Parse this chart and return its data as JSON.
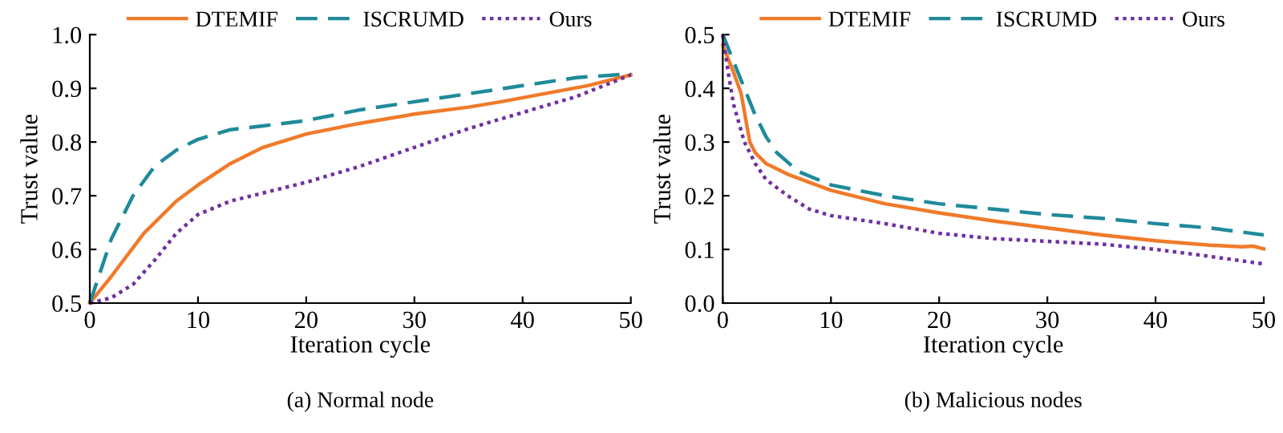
{
  "chart_data": [
    {
      "type": "line",
      "xlabel": "Iteration cycle",
      "ylabel": "Trust value",
      "annotations": [
        "(a) Normal node"
      ],
      "xlim": [
        0,
        50
      ],
      "ylim": [
        0.5,
        1.0
      ],
      "xticks": [
        0,
        10,
        20,
        30,
        40,
        50
      ],
      "yticks": [
        0.5,
        0.6,
        0.7,
        0.8,
        0.9,
        {
          "value": 1.0,
          "label": "1.0"
        }
      ],
      "legend": "top",
      "grid": false,
      "marker": "none",
      "series": [
        {
          "name": "DTEMIF",
          "color": "#f07a2a",
          "line_style": "solid",
          "x": [
            0,
            2,
            5,
            8,
            10,
            13,
            16,
            20,
            25,
            30,
            35,
            38,
            42,
            46,
            50
          ],
          "values": [
            0.5,
            0.55,
            0.63,
            0.69,
            0.72,
            0.76,
            0.79,
            0.815,
            0.835,
            0.852,
            0.865,
            0.875,
            0.89,
            0.905,
            0.925
          ]
        },
        {
          "name": "ISCRUMD",
          "color": "#1f8a9a",
          "line_style": "dashed",
          "x": [
            0,
            1,
            2,
            4,
            6,
            8,
            10,
            13,
            16,
            20,
            25,
            30,
            35,
            40,
            45,
            50
          ],
          "values": [
            0.5,
            0.56,
            0.62,
            0.7,
            0.755,
            0.785,
            0.805,
            0.823,
            0.83,
            0.84,
            0.86,
            0.875,
            0.89,
            0.905,
            0.92,
            0.927
          ]
        },
        {
          "name": "Ours",
          "color": "#7030a0",
          "line_style": "dotted",
          "x": [
            0,
            2,
            4,
            6,
            8,
            10,
            13,
            16,
            20,
            25,
            30,
            35,
            40,
            45,
            50
          ],
          "values": [
            0.5,
            0.51,
            0.535,
            0.58,
            0.63,
            0.665,
            0.69,
            0.705,
            0.725,
            0.755,
            0.79,
            0.825,
            0.855,
            0.885,
            0.925
          ]
        }
      ]
    },
    {
      "type": "line",
      "xlabel": "Iteration cycle",
      "ylabel": "Trust value",
      "annotations": [
        "(b) Malicious nodes"
      ],
      "xlim": [
        0,
        50
      ],
      "ylim": [
        0.0,
        0.5
      ],
      "xticks": [
        0,
        10,
        20,
        30,
        40,
        50
      ],
      "yticks": [
        {
          "value": 0.0,
          "label": "0.0"
        },
        0.1,
        0.2,
        0.3,
        0.4,
        0.5
      ],
      "legend": "top",
      "grid": false,
      "marker": "none",
      "series": [
        {
          "name": "DTEMIF",
          "color": "#f07a2a",
          "line_style": "solid",
          "x": [
            0,
            1,
            1.7,
            2.5,
            3,
            4,
            6,
            8,
            10,
            15,
            20,
            25,
            30,
            35,
            40,
            45,
            48,
            49,
            50
          ],
          "values": [
            0.48,
            0.43,
            0.39,
            0.3,
            0.28,
            0.26,
            0.24,
            0.225,
            0.21,
            0.185,
            0.168,
            0.153,
            0.14,
            0.127,
            0.116,
            0.108,
            0.105,
            0.106,
            0.101
          ]
        },
        {
          "name": "ISCRUMD",
          "color": "#1f8a9a",
          "line_style": "dashed",
          "x": [
            0,
            1,
            2,
            3,
            4,
            5,
            7,
            10,
            15,
            20,
            25,
            30,
            35,
            40,
            45,
            50
          ],
          "values": [
            0.5,
            0.45,
            0.4,
            0.35,
            0.31,
            0.28,
            0.245,
            0.22,
            0.2,
            0.185,
            0.175,
            0.165,
            0.158,
            0.148,
            0.14,
            0.127
          ]
        },
        {
          "name": "Ours",
          "color": "#7030a0",
          "line_style": "dotted",
          "x": [
            0,
            0.5,
            1,
            2,
            3,
            4,
            6,
            8,
            10,
            15,
            20,
            25,
            30,
            35,
            40,
            45,
            50
          ],
          "values": [
            0.5,
            0.43,
            0.37,
            0.3,
            0.26,
            0.23,
            0.2,
            0.175,
            0.163,
            0.148,
            0.13,
            0.12,
            0.115,
            0.11,
            0.1,
            0.087,
            0.073
          ]
        }
      ]
    }
  ]
}
